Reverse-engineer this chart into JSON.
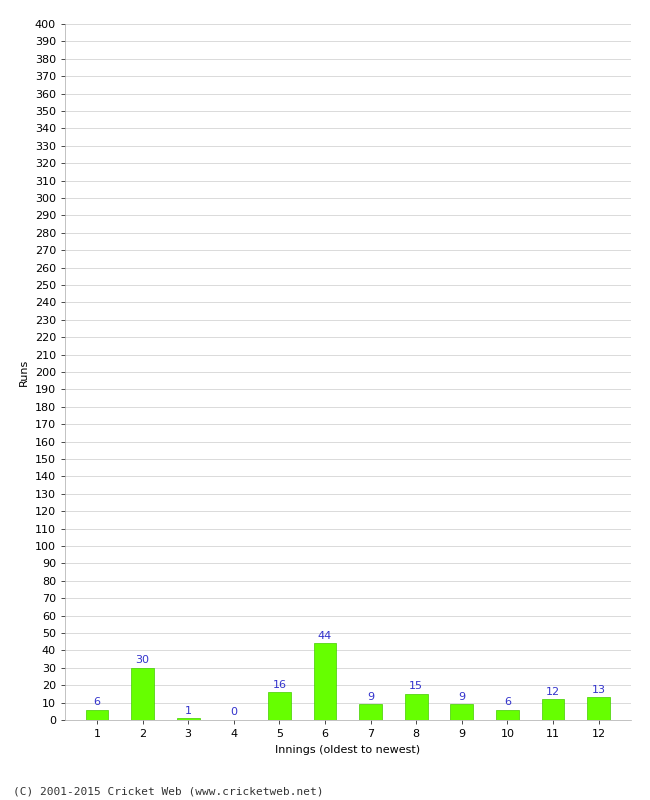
{
  "xlabel": "Innings (oldest to newest)",
  "ylabel": "Runs",
  "categories": [
    "1",
    "2",
    "3",
    "4",
    "5",
    "6",
    "7",
    "8",
    "9",
    "10",
    "11",
    "12"
  ],
  "values": [
    6,
    30,
    1,
    0,
    16,
    44,
    9,
    15,
    9,
    6,
    12,
    13
  ],
  "bar_color": "#66ff00",
  "bar_edge_color": "#44cc00",
  "label_color": "#3333cc",
  "background_color": "#ffffff",
  "grid_color": "#cccccc",
  "yticks": [
    0,
    10,
    20,
    30,
    40,
    50,
    60,
    70,
    80,
    90,
    100,
    110,
    120,
    130,
    140,
    150,
    160,
    170,
    180,
    190,
    200,
    210,
    220,
    230,
    240,
    250,
    260,
    270,
    280,
    290,
    300,
    310,
    320,
    330,
    340,
    350,
    360,
    370,
    380,
    390,
    400
  ],
  "ylim": [
    0,
    400
  ],
  "footer": "(C) 2001-2015 Cricket Web (www.cricketweb.net)",
  "axis_label_fontsize": 8,
  "tick_fontsize": 8,
  "bar_label_fontsize": 8,
  "footer_fontsize": 8
}
